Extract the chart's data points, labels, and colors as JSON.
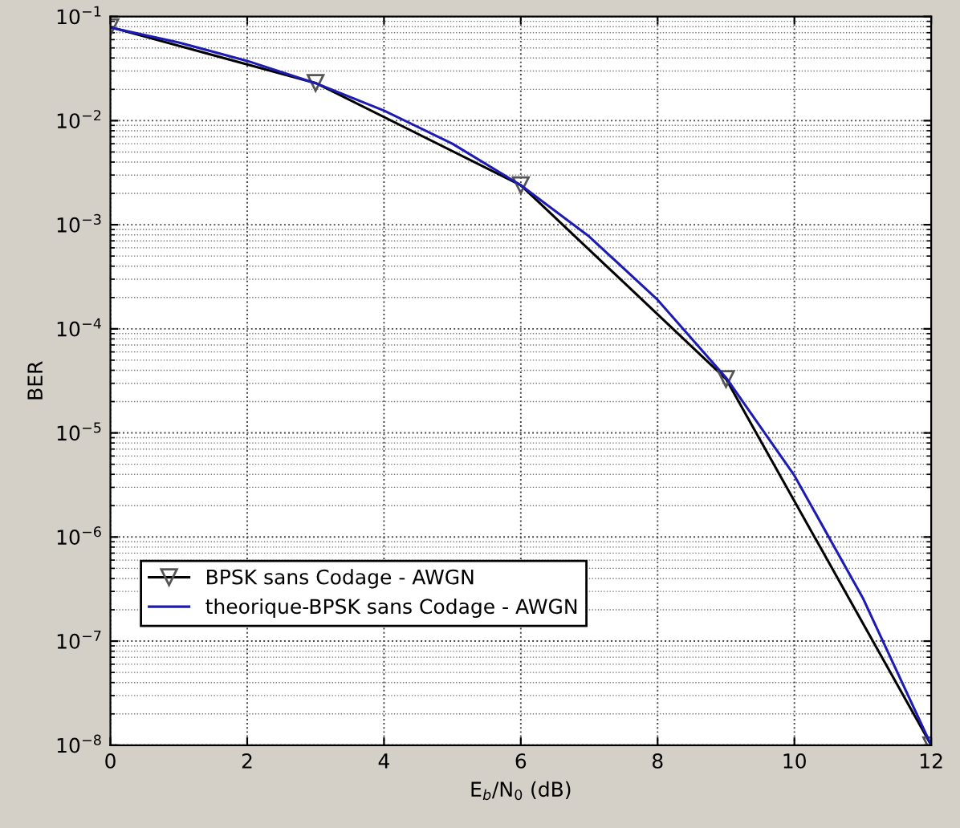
{
  "chart_data": {
    "type": "line",
    "xlabel": "E$_{b}$/N$_{0}$ (dB)",
    "ylabel": "BER",
    "log": "y",
    "xlim": [
      0,
      12
    ],
    "xticks": [
      0,
      2,
      4,
      6,
      8,
      10,
      12
    ],
    "ylim": [
      1e-08,
      0.1
    ],
    "yticks": [
      {
        "value": 1e-08,
        "label": "10$^{−8}$"
      },
      {
        "value": 1e-07,
        "label": "10$^{−7}$"
      },
      {
        "value": 1e-06,
        "label": "10$^{−6}$"
      },
      {
        "value": 1e-05,
        "label": "10$^{−5}$"
      },
      {
        "value": 0.0001,
        "label": "10$^{−4}$"
      },
      {
        "value": 0.001,
        "label": "10$^{−3}$"
      },
      {
        "value": 0.01,
        "label": "10$^{−2}$"
      },
      {
        "value": 0.1,
        "label": "10$^{−1}$"
      }
    ],
    "grid": true,
    "legend": "bottom left",
    "series": [
      {
        "name": "BPSK sans Codage - AWGN",
        "color": "#000000",
        "marker": "triangle",
        "x": [
          0,
          3,
          6,
          9,
          12
        ],
        "values": [
          0.079,
          0.023,
          0.0024,
          3.3e-05,
          1e-08
        ]
      },
      {
        "name": "theorique-BPSK sans Codage - AWGN",
        "color": "#1c1cb4",
        "marker": "none",
        "x": [
          0,
          1,
          2,
          3,
          4,
          5,
          6,
          7,
          8,
          9,
          10,
          11,
          12
        ],
        "values": [
          0.0786,
          0.0563,
          0.0375,
          0.0229,
          0.0125,
          0.006,
          0.0024,
          0.00077,
          0.00019,
          3.4e-05,
          3.9e-06,
          2.6e-07,
          1e-08
        ]
      }
    ]
  }
}
